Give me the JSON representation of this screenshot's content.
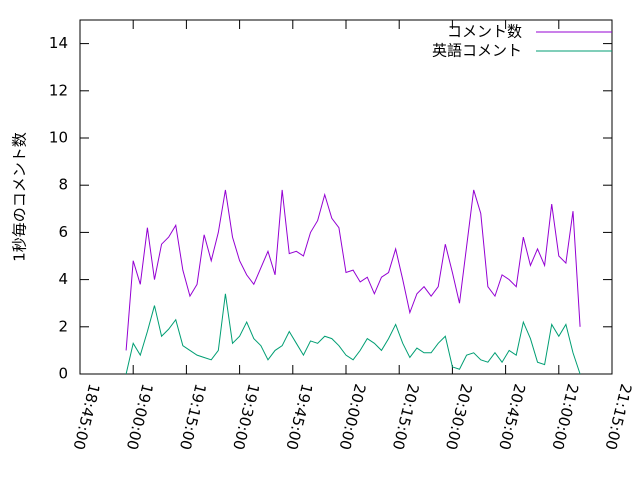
{
  "chart_data": {
    "type": "line",
    "ylabel": "1秒毎のコメント数",
    "x": [
      "18:58:00",
      "19:00:00",
      "19:02:00",
      "19:04:00",
      "19:06:00",
      "19:08:00",
      "19:10:00",
      "19:12:00",
      "19:14:00",
      "19:16:00",
      "19:18:00",
      "19:20:00",
      "19:22:00",
      "19:24:00",
      "19:26:00",
      "19:28:00",
      "19:30:00",
      "19:32:00",
      "19:34:00",
      "19:36:00",
      "19:38:00",
      "19:40:00",
      "19:42:00",
      "19:44:00",
      "19:46:00",
      "19:48:00",
      "19:50:00",
      "19:52:00",
      "19:54:00",
      "19:56:00",
      "19:58:00",
      "20:00:00",
      "20:02:00",
      "20:04:00",
      "20:06:00",
      "20:08:00",
      "20:10:00",
      "20:12:00",
      "20:14:00",
      "20:16:00",
      "20:18:00",
      "20:20:00",
      "20:22:00",
      "20:24:00",
      "20:26:00",
      "20:28:00",
      "20:30:00",
      "20:32:00",
      "20:34:00",
      "20:36:00",
      "20:38:00",
      "20:40:00",
      "20:42:00",
      "20:44:00",
      "20:46:00",
      "20:48:00",
      "20:50:00",
      "20:52:00",
      "20:54:00",
      "20:56:00",
      "20:58:00",
      "21:00:00",
      "21:02:00",
      "21:04:00",
      "21:06:00"
    ],
    "series": [
      {
        "name": "コメント数",
        "color": "#9400d3",
        "values": [
          1.0,
          4.8,
          3.8,
          6.2,
          4.0,
          5.5,
          5.8,
          6.3,
          4.4,
          3.3,
          3.8,
          5.9,
          4.8,
          6.0,
          7.8,
          5.8,
          4.8,
          4.2,
          3.8,
          4.5,
          5.2,
          4.2,
          7.8,
          5.1,
          5.2,
          5.0,
          6.0,
          6.5,
          7.6,
          6.6,
          6.2,
          4.3,
          4.4,
          3.9,
          4.1,
          3.4,
          4.1,
          4.3,
          5.3,
          4.0,
          2.6,
          3.4,
          3.7,
          3.3,
          3.7,
          5.5,
          4.3,
          3.0,
          5.4,
          7.8,
          6.8,
          3.7,
          3.3,
          4.2,
          4.0,
          3.7,
          5.8,
          4.6,
          5.3,
          4.6,
          7.2,
          5.0,
          4.7,
          6.9,
          2.0
        ]
      },
      {
        "name": "英語コメント",
        "color": "#009e73",
        "values": [
          0.0,
          1.3,
          0.8,
          1.8,
          2.9,
          1.6,
          1.9,
          2.3,
          1.2,
          1.0,
          0.8,
          0.7,
          0.6,
          1.0,
          3.4,
          1.3,
          1.6,
          2.2,
          1.5,
          1.2,
          0.6,
          1.0,
          1.2,
          1.8,
          1.3,
          0.8,
          1.4,
          1.3,
          1.6,
          1.5,
          1.2,
          0.8,
          0.6,
          1.0,
          1.5,
          1.3,
          1.0,
          1.5,
          2.1,
          1.3,
          0.7,
          1.1,
          0.9,
          0.9,
          1.3,
          1.6,
          0.3,
          0.2,
          0.8,
          0.9,
          0.6,
          0.5,
          0.9,
          0.5,
          1.0,
          0.8,
          2.2,
          1.5,
          0.5,
          0.4,
          2.1,
          1.6,
          2.1,
          0.9,
          0.0
        ]
      }
    ],
    "xlim": [
      "18:45:00",
      "21:15:00"
    ],
    "xticks": [
      "18:45:00",
      "19:00:00",
      "19:15:00",
      "19:30:00",
      "19:45:00",
      "20:00:00",
      "20:15:00",
      "20:30:00",
      "20:45:00",
      "21:00:00",
      "21:15:00"
    ],
    "ylim": [
      0,
      15
    ],
    "yticks": [
      0,
      2,
      4,
      6,
      8,
      10,
      12,
      14
    ],
    "legend": "top-right"
  }
}
